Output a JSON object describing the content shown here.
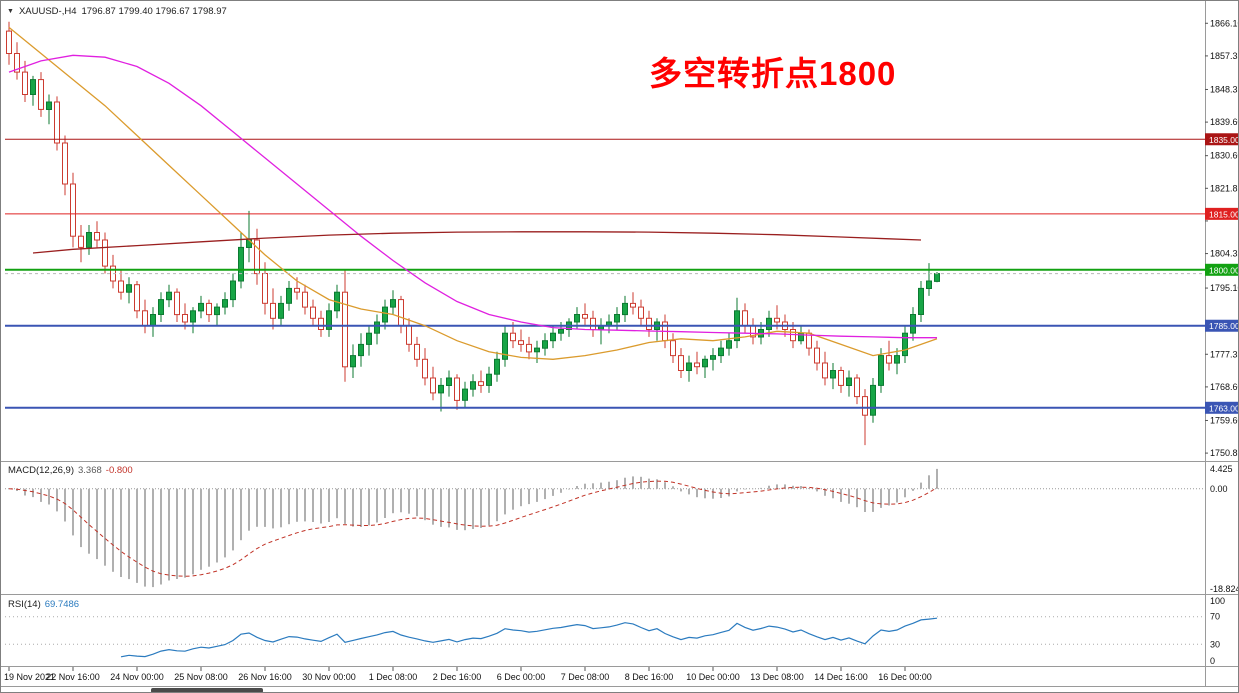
{
  "header": {
    "symbol_period": "XAUUSD-,H4",
    "ohlc_text": "1796.87 1799.40 1796.67 1798.97"
  },
  "annotation": {
    "text": "多空转折点1800",
    "color": "#FF0000"
  },
  "chart_data": {
    "type": "candlestick",
    "symbol": "XAUUSD-",
    "timeframe": "H4",
    "y_axis": {
      "min": 1749,
      "max": 1871,
      "tick_labels": [
        "1866.10",
        "1857.35",
        "1848.35",
        "1839.60",
        "1830.60",
        "1821.85",
        "1813.10",
        "1804.35",
        "1795.10",
        "1786.35",
        "1777.35",
        "1768.60",
        "1759.60",
        "1750.85"
      ]
    },
    "x_labels": [
      {
        "bar": 0,
        "text": "19 Nov 2021"
      },
      {
        "bar": 8,
        "text": "22 Nov 16:00"
      },
      {
        "bar": 16,
        "text": "24 Nov 00:00"
      },
      {
        "bar": 24,
        "text": "25 Nov 08:00"
      },
      {
        "bar": 32,
        "text": "26 Nov 16:00"
      },
      {
        "bar": 40,
        "text": "30 Nov 00:00"
      },
      {
        "bar": 48,
        "text": "1 Dec 08:00"
      },
      {
        "bar": 56,
        "text": "2 Dec 16:00"
      },
      {
        "bar": 64,
        "text": "6 Dec 00:00"
      },
      {
        "bar": 72,
        "text": "7 Dec 08:00"
      },
      {
        "bar": 80,
        "text": "8 Dec 16:00"
      },
      {
        "bar": 88,
        "text": "10 Dec 00:00"
      },
      {
        "bar": 96,
        "text": "13 Dec 08:00"
      },
      {
        "bar": 104,
        "text": "14 Dec 16:00"
      },
      {
        "bar": 112,
        "text": "16 Dec 00:00"
      }
    ],
    "horizontal_lines": [
      {
        "price": 1835.0,
        "label": "1835.00",
        "color": "#AA1515",
        "width": 1
      },
      {
        "price": 1815.0,
        "label": "1815.00",
        "color": "#DF2020",
        "width": 1
      },
      {
        "price": 1800.0,
        "label": "1800.00",
        "color": "#12A112",
        "width": 2
      },
      {
        "price": 1785.0,
        "label": "1785.00",
        "color": "#3A55B4",
        "width": 2
      },
      {
        "price": 1763.0,
        "label": "1763.00",
        "color": "#3A55B4",
        "width": 2
      }
    ],
    "bid_line": {
      "price": 1798.97,
      "color": "#b8b8b8"
    },
    "moving_averages": [
      {
        "name": "ma-orange-line",
        "color": "#DB9B2D",
        "points": [
          [
            0,
            1865
          ],
          [
            4,
            1858
          ],
          [
            8,
            1851
          ],
          [
            12,
            1844
          ],
          [
            16,
            1836
          ],
          [
            20,
            1828
          ],
          [
            24,
            1820
          ],
          [
            28,
            1812
          ],
          [
            32,
            1804
          ],
          [
            36,
            1797
          ],
          [
            40,
            1792
          ],
          [
            44,
            1789.5
          ],
          [
            48,
            1788
          ],
          [
            52,
            1785
          ],
          [
            56,
            1781
          ],
          [
            60,
            1778
          ],
          [
            64,
            1776.5
          ],
          [
            68,
            1776
          ],
          [
            72,
            1777
          ],
          [
            76,
            1778.5
          ],
          [
            80,
            1780.5
          ],
          [
            84,
            1781.5
          ],
          [
            88,
            1781
          ],
          [
            92,
            1782
          ],
          [
            96,
            1783.5
          ],
          [
            100,
            1783
          ],
          [
            104,
            1780
          ],
          [
            108,
            1777
          ],
          [
            112,
            1778.5
          ],
          [
            116,
            1781.5
          ]
        ]
      },
      {
        "name": "ma-magenta-line",
        "color": "#E020E0",
        "points": [
          [
            0,
            1853
          ],
          [
            4,
            1856
          ],
          [
            8,
            1857.5
          ],
          [
            12,
            1857
          ],
          [
            16,
            1854.5
          ],
          [
            20,
            1850
          ],
          [
            24,
            1844
          ],
          [
            28,
            1837
          ],
          [
            32,
            1830
          ],
          [
            36,
            1823
          ],
          [
            40,
            1816
          ],
          [
            44,
            1809
          ],
          [
            48,
            1802.5
          ],
          [
            52,
            1796.5
          ],
          [
            56,
            1791.5
          ],
          [
            60,
            1788
          ],
          [
            64,
            1786
          ],
          [
            68,
            1784.5
          ],
          [
            72,
            1784
          ],
          [
            76,
            1783.8
          ],
          [
            80,
            1783.6
          ],
          [
            84,
            1783.4
          ],
          [
            88,
            1783.2
          ],
          [
            92,
            1783
          ],
          [
            96,
            1782.8
          ],
          [
            100,
            1782.5
          ],
          [
            104,
            1782.2
          ],
          [
            108,
            1782
          ],
          [
            112,
            1781.8
          ],
          [
            116,
            1781.8
          ]
        ]
      },
      {
        "name": "ma-darkred-line",
        "color": "#9A1F1F",
        "points": [
          [
            3,
            1804.5
          ],
          [
            8,
            1805.5
          ],
          [
            16,
            1806.5
          ],
          [
            24,
            1807.5
          ],
          [
            32,
            1808.5
          ],
          [
            40,
            1809.3
          ],
          [
            48,
            1809.8
          ],
          [
            56,
            1810.1
          ],
          [
            64,
            1810.2
          ],
          [
            72,
            1810.2
          ],
          [
            80,
            1810.1
          ],
          [
            88,
            1809.8
          ],
          [
            96,
            1809.4
          ],
          [
            104,
            1808.8
          ],
          [
            110,
            1808.3
          ],
          [
            114,
            1808
          ]
        ]
      }
    ],
    "candles": {
      "up_fill": "#17A546",
      "up_stroke": "#0C7A31",
      "down_fill": "#FFFFFF",
      "down_stroke": "#CC3B30",
      "ohlc": [
        [
          1864,
          1866.5,
          1855,
          1858
        ],
        [
          1858,
          1861,
          1851,
          1853
        ],
        [
          1853,
          1856,
          1845,
          1847
        ],
        [
          1847,
          1852,
          1844,
          1851
        ],
        [
          1851,
          1853,
          1841,
          1843
        ],
        [
          1843,
          1847,
          1839,
          1845
        ],
        [
          1845,
          1846.5,
          1832,
          1834
        ],
        [
          1834,
          1836,
          1820,
          1823
        ],
        [
          1823,
          1826,
          1806,
          1809
        ],
        [
          1809,
          1812,
          1802,
          1806
        ],
        [
          1806,
          1812,
          1804,
          1810
        ],
        [
          1810,
          1813,
          1806,
          1808
        ],
        [
          1808,
          1810,
          1799,
          1801
        ],
        [
          1801,
          1804,
          1795,
          1797
        ],
        [
          1797,
          1800,
          1792,
          1794
        ],
        [
          1794,
          1798,
          1791,
          1796
        ],
        [
          1796,
          1797,
          1787,
          1789
        ],
        [
          1789,
          1792,
          1783,
          1785
        ],
        [
          1785,
          1790,
          1782,
          1788
        ],
        [
          1788,
          1794,
          1786,
          1792
        ],
        [
          1792,
          1796,
          1790,
          1794
        ],
        [
          1794,
          1795,
          1786,
          1788
        ],
        [
          1788,
          1791,
          1784,
          1786
        ],
        [
          1786,
          1790,
          1783,
          1789
        ],
        [
          1789,
          1793,
          1787,
          1791
        ],
        [
          1791,
          1792,
          1786,
          1788
        ],
        [
          1788,
          1791,
          1785,
          1790
        ],
        [
          1790,
          1794,
          1788,
          1792
        ],
        [
          1792,
          1799,
          1790,
          1797
        ],
        [
          1797,
          1810,
          1795,
          1806
        ],
        [
          1806,
          1815.8,
          1802,
          1808
        ],
        [
          1808,
          1811,
          1796,
          1799
        ],
        [
          1799,
          1802,
          1788,
          1791
        ],
        [
          1791,
          1795,
          1784,
          1787
        ],
        [
          1787,
          1793,
          1785,
          1791
        ],
        [
          1791,
          1797,
          1789,
          1795
        ],
        [
          1795,
          1798,
          1792,
          1794
        ],
        [
          1794,
          1796,
          1788,
          1790
        ],
        [
          1790,
          1792,
          1785,
          1787
        ],
        [
          1787,
          1789,
          1782,
          1784
        ],
        [
          1784,
          1791,
          1782,
          1789
        ],
        [
          1789,
          1796,
          1787,
          1794
        ],
        [
          1794,
          1800,
          1770,
          1774
        ],
        [
          1774,
          1780,
          1771,
          1777
        ],
        [
          1777,
          1783,
          1774,
          1780
        ],
        [
          1780,
          1785,
          1777,
          1783
        ],
        [
          1783,
          1788,
          1780,
          1786
        ],
        [
          1786,
          1792,
          1784,
          1790
        ],
        [
          1790,
          1794.5,
          1788,
          1792
        ],
        [
          1792,
          1793,
          1783,
          1785
        ],
        [
          1785,
          1787,
          1778,
          1780
        ],
        [
          1780,
          1782,
          1774,
          1776
        ],
        [
          1776,
          1779,
          1769,
          1771
        ],
        [
          1771,
          1774,
          1765,
          1767
        ],
        [
          1767,
          1771,
          1762,
          1769
        ],
        [
          1769,
          1773,
          1766,
          1771
        ],
        [
          1771,
          1772,
          1762.5,
          1765
        ],
        [
          1765,
          1770,
          1763,
          1768
        ],
        [
          1768,
          1772,
          1766,
          1770
        ],
        [
          1770,
          1773,
          1767,
          1769
        ],
        [
          1769,
          1774,
          1767,
          1772
        ],
        [
          1772,
          1778,
          1770,
          1776
        ],
        [
          1776,
          1785,
          1774,
          1783
        ],
        [
          1783,
          1786,
          1779,
          1781
        ],
        [
          1781,
          1784,
          1778,
          1780
        ],
        [
          1780,
          1782,
          1776,
          1778
        ],
        [
          1778,
          1781,
          1775,
          1779
        ],
        [
          1779,
          1783,
          1777,
          1781
        ],
        [
          1781,
          1785,
          1779,
          1783
        ],
        [
          1783,
          1786,
          1781,
          1784
        ],
        [
          1784,
          1787,
          1782,
          1786
        ],
        [
          1786,
          1790,
          1784,
          1788
        ],
        [
          1788,
          1791,
          1785,
          1787
        ],
        [
          1787,
          1789,
          1782,
          1784
        ],
        [
          1784,
          1787,
          1780,
          1785
        ],
        [
          1785,
          1788,
          1783,
          1786
        ],
        [
          1786,
          1790,
          1784,
          1788
        ],
        [
          1788,
          1793,
          1786,
          1791
        ],
        [
          1791,
          1794,
          1788,
          1790
        ],
        [
          1790,
          1792,
          1785,
          1787
        ],
        [
          1787,
          1789,
          1782,
          1784
        ],
        [
          1784,
          1787,
          1781,
          1786
        ],
        [
          1786,
          1788,
          1779,
          1781
        ],
        [
          1781,
          1783,
          1775,
          1777
        ],
        [
          1777,
          1779,
          1771,
          1773
        ],
        [
          1773,
          1777,
          1770,
          1775
        ],
        [
          1775,
          1778,
          1772,
          1774
        ],
        [
          1774,
          1777,
          1771,
          1776
        ],
        [
          1776,
          1779,
          1773,
          1777
        ],
        [
          1777,
          1781,
          1775,
          1779
        ],
        [
          1779,
          1783,
          1777,
          1781
        ],
        [
          1781,
          1792.5,
          1779,
          1789
        ],
        [
          1789,
          1791,
          1783,
          1785
        ],
        [
          1785,
          1787,
          1780,
          1782
        ],
        [
          1782,
          1786,
          1780,
          1784
        ],
        [
          1784,
          1789,
          1782,
          1787
        ],
        [
          1787,
          1790.5,
          1784,
          1786
        ],
        [
          1786,
          1788,
          1782,
          1784
        ],
        [
          1784,
          1786,
          1779,
          1781
        ],
        [
          1781,
          1785,
          1780,
          1783
        ],
        [
          1783,
          1784,
          1777,
          1779
        ],
        [
          1779,
          1781,
          1773,
          1775
        ],
        [
          1775,
          1778,
          1769,
          1771
        ],
        [
          1771,
          1775,
          1768,
          1773
        ],
        [
          1773,
          1774,
          1767,
          1769
        ],
        [
          1769,
          1773,
          1766,
          1771
        ],
        [
          1771,
          1772,
          1764,
          1766
        ],
        [
          1766,
          1768,
          1753,
          1761
        ],
        [
          1761,
          1771,
          1759,
          1769
        ],
        [
          1769,
          1779,
          1767,
          1777
        ],
        [
          1777,
          1781,
          1773,
          1775
        ],
        [
          1775,
          1779,
          1772,
          1777
        ],
        [
          1777,
          1785,
          1775,
          1783
        ],
        [
          1783,
          1790,
          1781,
          1788
        ],
        [
          1788,
          1797,
          1786,
          1795
        ],
        [
          1795,
          1801.8,
          1793,
          1797
        ],
        [
          1796.87,
          1799.4,
          1796.67,
          1798.97
        ]
      ]
    },
    "macd": {
      "label": "MACD(12,26,9)",
      "main_value": "3.368",
      "signal_value": "-0.800",
      "fast": 12,
      "slow": 26,
      "signal": 9,
      "axis_max_label": "4.425",
      "axis_zero_label": "0.00",
      "axis_min_label": "-18.824",
      "histogram_color": "#B0B0B0",
      "signal_color": "#C13327"
    },
    "rsi": {
      "label": "RSI(14)",
      "value": "69.7486",
      "period": 14,
      "levels": [
        "100",
        "70",
        "30",
        "0"
      ],
      "line_color": "#2B7BBF"
    }
  }
}
